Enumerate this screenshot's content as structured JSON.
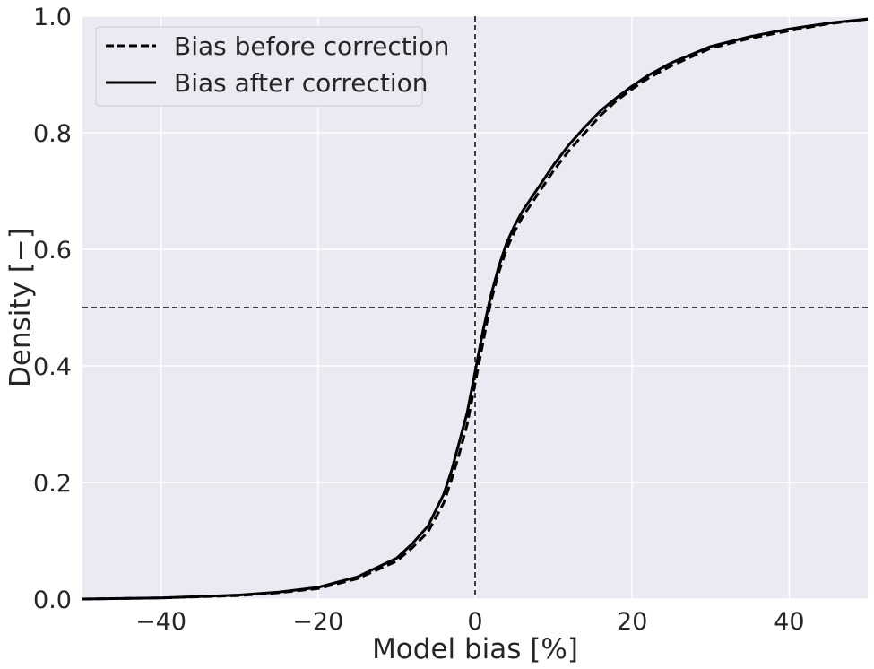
{
  "chart_data": {
    "type": "line",
    "title": "",
    "xlabel": "Model bias [%]",
    "ylabel": "Density [−]",
    "xlim": [
      -50,
      50
    ],
    "ylim": [
      0,
      1
    ],
    "xticks": [
      -40,
      -20,
      0,
      20,
      40
    ],
    "xtick_labels": [
      "−40",
      "−20",
      "0",
      "20",
      "40"
    ],
    "yticks": [
      0,
      0.2,
      0.4,
      0.6,
      0.8,
      1.0
    ],
    "ytick_labels": [
      "0.0",
      "0.2",
      "0.4",
      "0.6",
      "0.8",
      "1.0"
    ],
    "grid": true,
    "legend_position": "top-left",
    "reference_lines": {
      "vertical_x": 0,
      "horizontal_y": 0.5
    },
    "series": [
      {
        "name": "Bias before correction",
        "style": "dashed",
        "color": "#000000",
        "x": [
          -50,
          -40,
          -30,
          -25,
          -20,
          -15,
          -10,
          -8,
          -6,
          -4,
          -3,
          -2,
          -1,
          0,
          1,
          2,
          3,
          4,
          5,
          6,
          8,
          10,
          12,
          14,
          16,
          18,
          20,
          22,
          25,
          30,
          35,
          40,
          45,
          50
        ],
        "y": [
          0.0,
          0.002,
          0.006,
          0.011,
          0.018,
          0.035,
          0.065,
          0.088,
          0.115,
          0.165,
          0.205,
          0.25,
          0.3,
          0.37,
          0.44,
          0.51,
          0.56,
          0.6,
          0.63,
          0.655,
          0.695,
          0.735,
          0.77,
          0.8,
          0.83,
          0.855,
          0.875,
          0.893,
          0.915,
          0.945,
          0.962,
          0.975,
          0.987,
          0.995
        ]
      },
      {
        "name": "Bias after correction",
        "style": "solid",
        "color": "#000000",
        "x": [
          -50,
          -40,
          -30,
          -25,
          -20,
          -15,
          -10,
          -8,
          -6,
          -4,
          -3,
          -2,
          -1,
          0,
          1,
          2,
          3,
          4,
          5,
          6,
          8,
          10,
          12,
          14,
          16,
          18,
          20,
          22,
          25,
          30,
          35,
          40,
          45,
          50
        ],
        "y": [
          0.0,
          0.002,
          0.007,
          0.012,
          0.02,
          0.038,
          0.07,
          0.095,
          0.125,
          0.18,
          0.22,
          0.27,
          0.32,
          0.39,
          0.46,
          0.52,
          0.57,
          0.61,
          0.64,
          0.665,
          0.705,
          0.745,
          0.78,
          0.81,
          0.838,
          0.86,
          0.88,
          0.898,
          0.92,
          0.948,
          0.965,
          0.978,
          0.988,
          0.995
        ]
      }
    ]
  }
}
